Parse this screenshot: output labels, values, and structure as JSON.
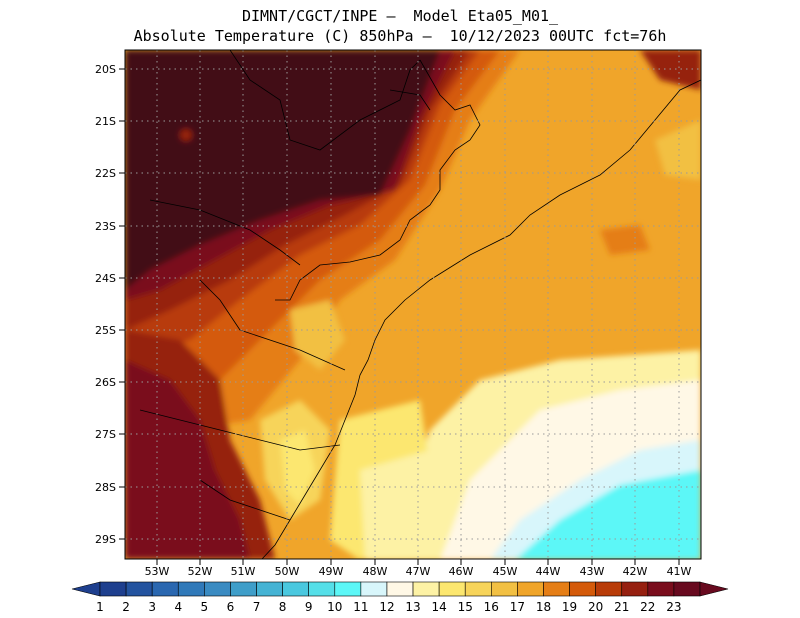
{
  "header": {
    "line1": "DIMNT/CGCT/INPE —  Model Eta05_M01_",
    "line2": "Absolute Temperature (C) 850hPa —  10/12/2023 00UTC fct=76h"
  },
  "axes": {
    "lat_labels": [
      "20S",
      "21S",
      "22S",
      "23S",
      "24S",
      "25S",
      "26S",
      "27S",
      "28S",
      "29S"
    ],
    "lon_labels": [
      "53W",
      "52W",
      "51W",
      "50W",
      "49W",
      "48W",
      "47W",
      "46W",
      "45W",
      "44W",
      "43W",
      "42W",
      "41W"
    ]
  },
  "colorbar": {
    "labels": [
      "1",
      "2",
      "3",
      "4",
      "5",
      "6",
      "7",
      "8",
      "9",
      "10",
      "11",
      "12",
      "13",
      "14",
      "15",
      "16",
      "17",
      "18",
      "19",
      "20",
      "21",
      "22",
      "23"
    ],
    "colors": [
      "#1e3f8e",
      "#23539f",
      "#2a67b0",
      "#3079b9",
      "#3a8bc2",
      "#3f9ec9",
      "#45b3d4",
      "#4ac8df",
      "#55dfe8",
      "#5cf7f7",
      "#d8f6fb",
      "#fff8e6",
      "#fdf2a5",
      "#fce76f",
      "#f7d45a",
      "#f2c043",
      "#f0a52a",
      "#e57e16",
      "#d45a0a",
      "#b83b08",
      "#962010",
      "#7a0d1d",
      "#680a1f"
    ]
  }
}
